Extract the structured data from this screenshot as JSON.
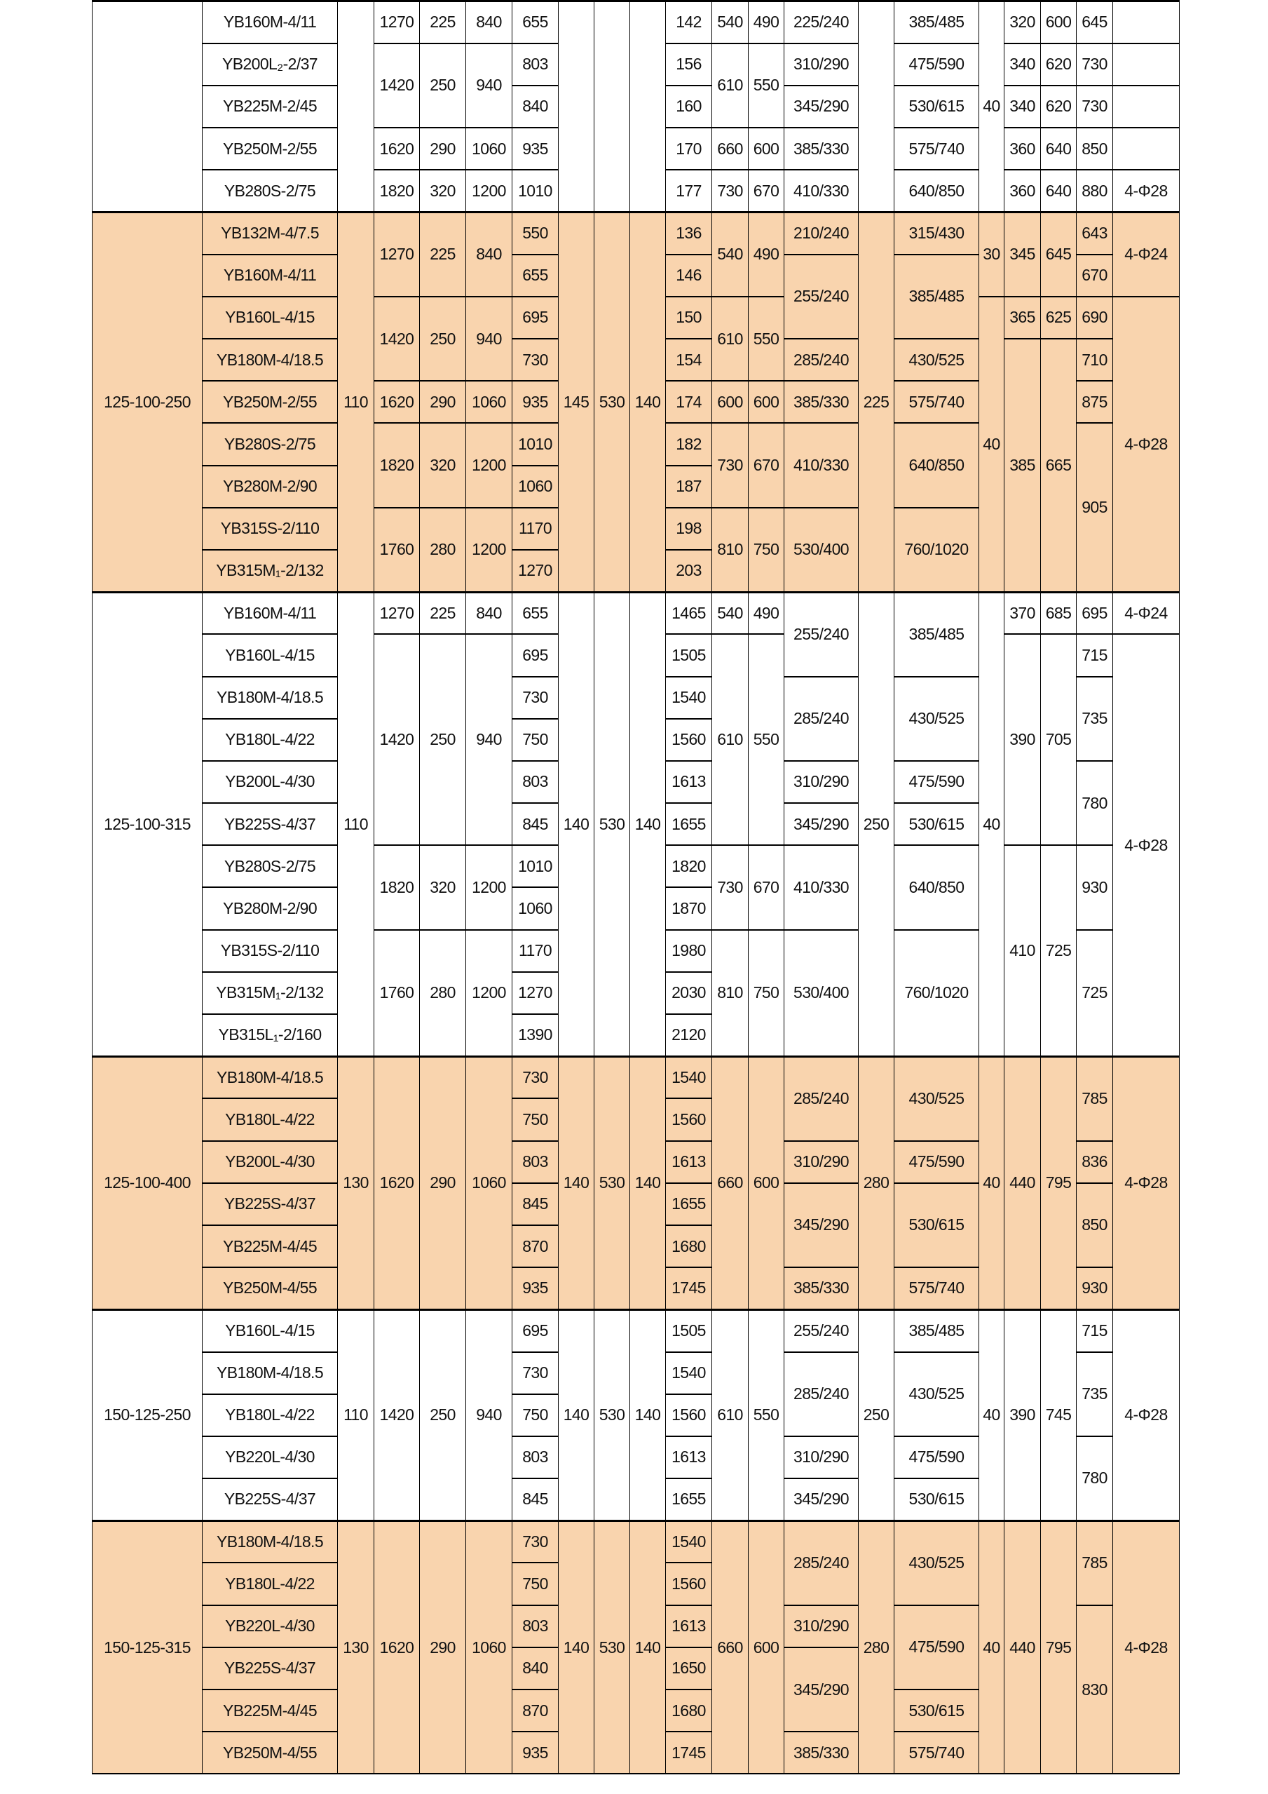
{
  "colors": {
    "band": "#f9d4ae",
    "plain": "#ffffff",
    "grid": "#000000"
  },
  "sections": [
    {
      "pump": "",
      "band": "white",
      "rows": [
        [
          [
            "",
            5
          ],
          "YB160M-4/11",
          [
            "",
            5
          ],
          "1270",
          "225",
          "840",
          "655",
          [
            "",
            5
          ],
          [
            "",
            5
          ],
          [
            "",
            5
          ],
          "142",
          "540",
          "490",
          "225/240",
          [
            "",
            5
          ],
          "385/485",
          [
            "40",
            5
          ],
          "320",
          "600",
          "645",
          ""
        ],
        [
          "YB200L₂-2/37",
          [
            "1420",
            2
          ],
          [
            "250",
            2
          ],
          [
            "940",
            2
          ],
          "803",
          "156",
          [
            "610",
            2
          ],
          [
            "550",
            2
          ],
          "310/290",
          "475/590",
          "340",
          "620",
          "730",
          ""
        ],
        [
          "YB225M-2/45",
          "840",
          "160",
          "345/290",
          "530/615",
          "340",
          "620",
          "730",
          ""
        ],
        [
          "YB250M-2/55",
          "1620",
          "290",
          "1060",
          "935",
          "170",
          "660",
          "600",
          "385/330",
          "575/740",
          "360",
          "640",
          "850",
          ""
        ],
        [
          "YB280S-2/75",
          "1820",
          "320",
          "1200",
          "1010",
          "177",
          "730",
          "670",
          "410/330",
          "640/850",
          "360",
          "640",
          "880",
          "4-Φ28"
        ]
      ]
    },
    {
      "pump": "125-100-250",
      "band": "peach",
      "rows": [
        [
          [
            "125-100-250",
            9
          ],
          "YB132M-4/7.5",
          [
            "110",
            9
          ],
          [
            "1270",
            2
          ],
          [
            "225",
            2
          ],
          [
            "840",
            2
          ],
          "550",
          [
            "145",
            9
          ],
          [
            "530",
            9
          ],
          [
            "140",
            9
          ],
          "136",
          [
            "540",
            2
          ],
          [
            "490",
            2
          ],
          "210/240",
          [
            "225",
            9
          ],
          "315/430",
          [
            "30",
            2
          ],
          [
            "345",
            2
          ],
          [
            "645",
            2
          ],
          "643",
          [
            "4-Φ24",
            2
          ]
        ],
        [
          "YB160M-4/11",
          "655",
          "146",
          [
            "255/240",
            2
          ],
          [
            "385/485",
            2
          ],
          "670"
        ],
        [
          "YB160L-4/15",
          [
            "1420",
            2
          ],
          [
            "250",
            2
          ],
          [
            "940",
            2
          ],
          "695",
          "150",
          [
            "610",
            2
          ],
          [
            "550",
            2
          ],
          [
            "40",
            7
          ],
          "365",
          "625",
          "690",
          [
            "4-Φ28",
            7
          ]
        ],
        [
          "YB180M-4/18.5",
          "730",
          "154",
          "285/240",
          "430/525",
          [
            "385",
            6
          ],
          [
            "665",
            6
          ],
          "710"
        ],
        [
          "YB250M-2/55",
          "1620",
          "290",
          "1060",
          "935",
          "174",
          "600",
          "600",
          "385/330",
          "575/740",
          "875"
        ],
        [
          "YB280S-2/75",
          [
            "1820",
            2
          ],
          [
            "320",
            2
          ],
          [
            "1200",
            2
          ],
          "1010",
          "182",
          [
            "730",
            2
          ],
          [
            "670",
            2
          ],
          [
            "410/330",
            2
          ],
          [
            "640/850",
            2
          ],
          [
            "905",
            4
          ]
        ],
        [
          "YB280M-2/90",
          "1060",
          "187"
        ],
        [
          "YB315S-2/110",
          [
            "1760",
            2
          ],
          [
            "280",
            2
          ],
          [
            "1200",
            2
          ],
          "1170",
          "198",
          [
            "810",
            2
          ],
          [
            "750",
            2
          ],
          [
            "530/400",
            2
          ],
          [
            "760/1020",
            2
          ]
        ],
        [
          "YB315M₁-2/132",
          "1270",
          "203"
        ]
      ]
    },
    {
      "pump": "125-100-315",
      "band": "white",
      "rows": [
        [
          [
            "125-100-315",
            11
          ],
          "YB160M-4/11",
          [
            "110",
            11
          ],
          "1270",
          "225",
          "840",
          "655",
          [
            "140",
            11
          ],
          [
            "530",
            11
          ],
          [
            "140",
            11
          ],
          "1465",
          "540",
          "490",
          [
            "255/240",
            2
          ],
          [
            "250",
            11
          ],
          [
            "385/485",
            2
          ],
          [
            "40",
            11
          ],
          "370",
          "685",
          "695",
          "4-Φ24"
        ],
        [
          "YB160L-4/15",
          [
            "1420",
            5
          ],
          [
            "250",
            5
          ],
          [
            "940",
            5
          ],
          "695",
          "1505",
          [
            "610",
            5
          ],
          [
            "550",
            5
          ],
          [
            "390",
            5
          ],
          [
            "705",
            5
          ],
          "715",
          [
            "4-Φ28",
            10
          ]
        ],
        [
          "YB180M-4/18.5",
          "730",
          "1540",
          [
            "285/240",
            2
          ],
          [
            "430/525",
            2
          ],
          [
            "735",
            2
          ]
        ],
        [
          "YB180L-4/22",
          "750",
          "1560"
        ],
        [
          "YB200L-4/30",
          "803",
          "1613",
          "310/290",
          "475/590",
          [
            "780",
            2
          ]
        ],
        [
          "YB225S-4/37",
          "845",
          "1655",
          "345/290",
          "530/615"
        ],
        [
          "YB280S-2/75",
          [
            "1820",
            2
          ],
          [
            "320",
            2
          ],
          [
            "1200",
            2
          ],
          "1010",
          "1820",
          [
            "730",
            2
          ],
          [
            "670",
            2
          ],
          [
            "410/330",
            2
          ],
          [
            "640/850",
            2
          ],
          [
            "410",
            5
          ],
          [
            "725",
            5
          ],
          [
            "930",
            2
          ]
        ],
        [
          "YB280M-2/90",
          "1060",
          "1870"
        ],
        [
          "YB315S-2/110",
          [
            "1760",
            3
          ],
          [
            "280",
            3
          ],
          [
            "1200",
            3
          ],
          "1170",
          "1980",
          [
            "810",
            3
          ],
          [
            "750",
            3
          ],
          [
            "530/400",
            3
          ],
          [
            "760/1020",
            3
          ],
          [
            "725",
            3
          ]
        ],
        [
          "YB315M₁-2/132",
          "1270",
          "2030"
        ],
        [
          "YB315L₁-2/160",
          "1390",
          "2120"
        ]
      ]
    },
    {
      "pump": "125-100-400",
      "band": "peach",
      "rows": [
        [
          [
            "125-100-400",
            6
          ],
          "YB180M-4/18.5",
          [
            "130",
            6
          ],
          [
            "1620",
            6
          ],
          [
            "290",
            6
          ],
          [
            "1060",
            6
          ],
          "730",
          [
            "140",
            6
          ],
          [
            "530",
            6
          ],
          [
            "140",
            6
          ],
          "1540",
          [
            "660",
            6
          ],
          [
            "600",
            6
          ],
          [
            "285/240",
            2
          ],
          [
            "280",
            6
          ],
          [
            "430/525",
            2
          ],
          [
            "40",
            6
          ],
          [
            "440",
            6
          ],
          [
            "795",
            6
          ],
          [
            "785",
            2
          ],
          [
            "4-Φ28",
            6
          ]
        ],
        [
          "YB180L-4/22",
          "750",
          "1560"
        ],
        [
          "YB200L-4/30",
          "803",
          "1613",
          "310/290",
          "475/590",
          "836"
        ],
        [
          "YB225S-4/37",
          "845",
          "1655",
          [
            "345/290",
            2
          ],
          [
            "530/615",
            2
          ],
          [
            "850",
            2
          ]
        ],
        [
          "YB225M-4/45",
          "870",
          "1680"
        ],
        [
          "YB250M-4/55",
          "935",
          "1745",
          "385/330",
          "575/740",
          "930"
        ]
      ]
    },
    {
      "pump": "150-125-250",
      "band": "white",
      "rows": [
        [
          [
            "150-125-250",
            5
          ],
          "YB160L-4/15",
          [
            "110",
            5
          ],
          [
            "1420",
            5
          ],
          [
            "250",
            5
          ],
          [
            "940",
            5
          ],
          "695",
          [
            "140",
            5
          ],
          [
            "530",
            5
          ],
          [
            "140",
            5
          ],
          "1505",
          [
            "610",
            5
          ],
          [
            "550",
            5
          ],
          "255/240",
          [
            "250",
            5
          ],
          "385/485",
          [
            "40",
            5
          ],
          [
            "390",
            5
          ],
          [
            "745",
            5
          ],
          "715",
          [
            "4-Φ28",
            5
          ]
        ],
        [
          "YB180M-4/18.5",
          "730",
          "1540",
          [
            "285/240",
            2
          ],
          [
            "430/525",
            2
          ],
          [
            "735",
            2
          ]
        ],
        [
          "YB180L-4/22",
          "750",
          "1560"
        ],
        [
          "YB220L-4/30",
          "803",
          "1613",
          "310/290",
          "475/590",
          [
            "780",
            2
          ]
        ],
        [
          "YB225S-4/37",
          "845",
          "1655",
          "345/290",
          "530/615"
        ]
      ]
    },
    {
      "pump": "150-125-315",
      "band": "peach",
      "rows": [
        [
          [
            "150-125-315",
            6
          ],
          "YB180M-4/18.5",
          [
            "130",
            6
          ],
          [
            "1620",
            6
          ],
          [
            "290",
            6
          ],
          [
            "1060",
            6
          ],
          "730",
          [
            "140",
            6
          ],
          [
            "530",
            6
          ],
          [
            "140",
            6
          ],
          "1540",
          [
            "660",
            6
          ],
          [
            "600",
            6
          ],
          [
            "285/240",
            2
          ],
          [
            "280",
            6
          ],
          [
            "430/525",
            2
          ],
          [
            "40",
            6
          ],
          [
            "440",
            6
          ],
          [
            "795",
            6
          ],
          [
            "785",
            2
          ],
          [
            "4-Φ28",
            6
          ]
        ],
        [
          "YB180L-4/22",
          "750",
          "1560"
        ],
        [
          "YB220L-4/30",
          "803",
          "1613",
          "310/290",
          [
            "475/590",
            2
          ],
          [
            "830",
            4
          ]
        ],
        [
          "YB225S-4/37",
          "840",
          "1650",
          [
            "345/290",
            2
          ]
        ],
        [
          "YB225M-4/45",
          "870",
          "1680",
          "530/615"
        ],
        [
          "YB250M-4/55",
          "935",
          "1745",
          "385/330",
          "575/740"
        ]
      ]
    }
  ]
}
